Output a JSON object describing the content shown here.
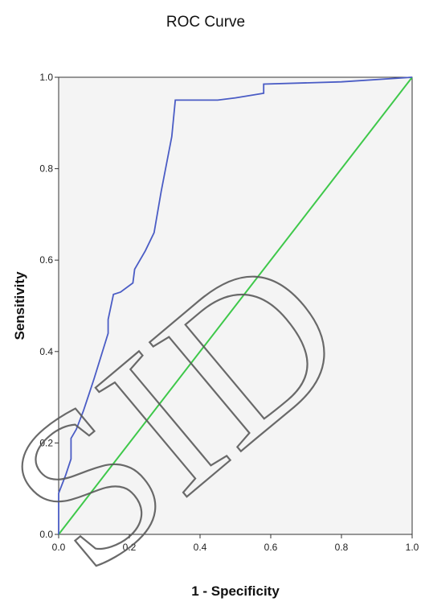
{
  "chart_data": {
    "type": "line",
    "title": "ROC Curve",
    "xlabel": "1 - Specificity",
    "ylabel": "Sensitivity",
    "xlim": [
      0,
      1
    ],
    "ylim": [
      0,
      1
    ],
    "xticks": [
      "0.0",
      "0.2",
      "0.4",
      "0.6",
      "0.8",
      "1.0"
    ],
    "yticks": [
      "0.0",
      "0.2",
      "0.4",
      "0.6",
      "0.8",
      "1.0"
    ],
    "grid": false,
    "background_color": "#f4f4f4",
    "series": [
      {
        "role": "roc-curve",
        "color": "#4a5cc5",
        "x": [
          0.0,
          0.0,
          0.02,
          0.035,
          0.035,
          0.05,
          0.07,
          0.085,
          0.1,
          0.12,
          0.14,
          0.14,
          0.155,
          0.175,
          0.21,
          0.215,
          0.245,
          0.27,
          0.29,
          0.32,
          0.33,
          0.45,
          0.5,
          0.58,
          0.58,
          0.8,
          1.0
        ],
        "y": [
          0.0,
          0.09,
          0.13,
          0.165,
          0.21,
          0.23,
          0.27,
          0.305,
          0.34,
          0.39,
          0.44,
          0.47,
          0.525,
          0.53,
          0.55,
          0.58,
          0.62,
          0.66,
          0.75,
          0.87,
          0.95,
          0.95,
          0.955,
          0.965,
          0.985,
          0.99,
          1.0
        ]
      },
      {
        "role": "reference-line",
        "color": "#3ec84a",
        "x": [
          0,
          1
        ],
        "y": [
          0,
          1
        ]
      }
    ],
    "watermark": {
      "text": "SID",
      "color": "#5a5a5a"
    }
  }
}
